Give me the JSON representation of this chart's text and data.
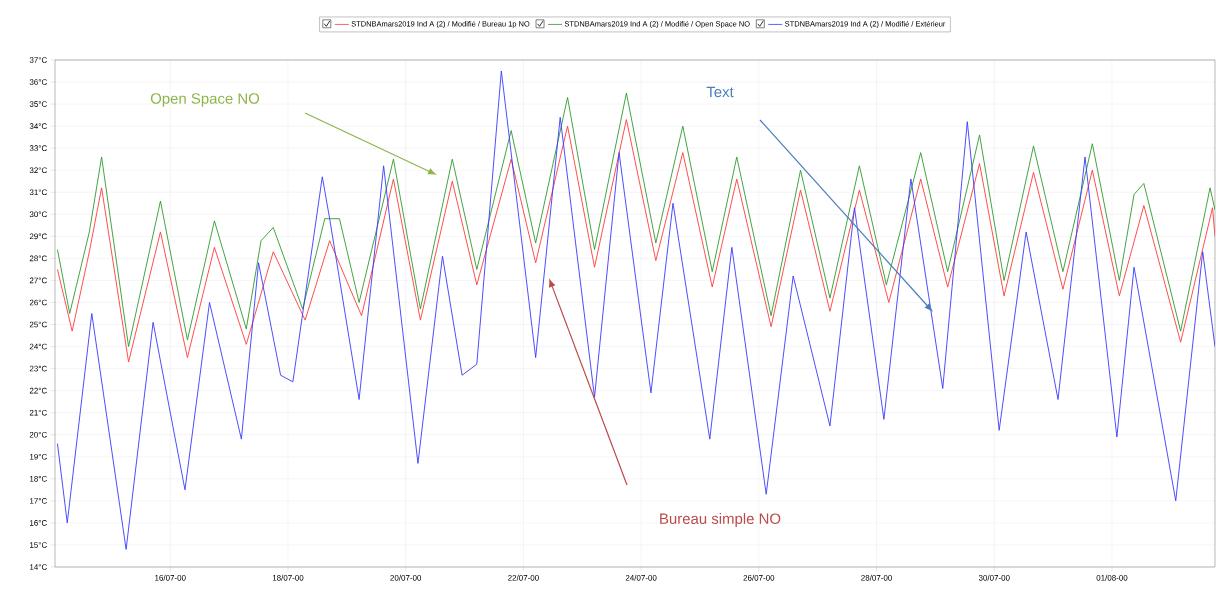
{
  "chart_data": {
    "type": "line",
    "xlim": [
      "2000-07-14T01:00",
      "2000-08-02T18:00"
    ],
    "xticks": [
      {
        "value": "2000-07-16",
        "label": "16/07-00"
      },
      {
        "value": "2000-07-18",
        "label": "18/07-00"
      },
      {
        "value": "2000-07-20",
        "label": "20/07-00"
      },
      {
        "value": "2000-07-22",
        "label": "22/07-00"
      },
      {
        "value": "2000-07-24",
        "label": "24/07-00"
      },
      {
        "value": "2000-07-26",
        "label": "26/07-00"
      },
      {
        "value": "2000-07-28",
        "label": "28/07-00"
      },
      {
        "value": "2000-07-30",
        "label": "30/07-00"
      },
      {
        "value": "2000-08-01",
        "label": "01/08-00"
      }
    ],
    "ylim": [
      14,
      37
    ],
    "yticks": [
      {
        "value": 14,
        "label": "14°C"
      },
      {
        "value": 15,
        "label": "15°C"
      },
      {
        "value": 16,
        "label": "16°C"
      },
      {
        "value": 17,
        "label": "17°C"
      },
      {
        "value": 18,
        "label": "18°C"
      },
      {
        "value": 19,
        "label": "19°C"
      },
      {
        "value": 20,
        "label": "20°C"
      },
      {
        "value": 21,
        "label": "21°C"
      },
      {
        "value": 22,
        "label": "22°C"
      },
      {
        "value": 23,
        "label": "23°C"
      },
      {
        "value": 24,
        "label": "24°C"
      },
      {
        "value": 25,
        "label": "25°C"
      },
      {
        "value": 26,
        "label": "26°C"
      },
      {
        "value": 27,
        "label": "27°C"
      },
      {
        "value": 28,
        "label": "28°C"
      },
      {
        "value": 29,
        "label": "29°C"
      },
      {
        "value": 30,
        "label": "30°C"
      },
      {
        "value": 31,
        "label": "31°C"
      },
      {
        "value": 32,
        "label": "32°C"
      },
      {
        "value": 33,
        "label": "33°C"
      },
      {
        "value": 34,
        "label": "34°C"
      },
      {
        "value": 35,
        "label": "35°C"
      },
      {
        "value": 36,
        "label": "36°C"
      },
      {
        "value": 37,
        "label": "37°C"
      }
    ],
    "grid": true,
    "legend": "top",
    "marker": "none",
    "line_style": "solid",
    "series": [
      {
        "name": "STDNBAmars2019 Ind A (2) / Modifié / Bureau 1p NO",
        "color": "#ff3b3b",
        "x": [
          "2000-07-14T02:00",
          "2000-07-14T08:00",
          "2000-07-14T15:00",
          "2000-07-14T20:00",
          "2000-07-15T07:00",
          "2000-07-15T20:00",
          "2000-07-16T07:00",
          "2000-07-16T18:00",
          "2000-07-17T07:00",
          "2000-07-17T18:00",
          "2000-07-18T07:00",
          "2000-07-18T17:00",
          "2000-07-19T06:00",
          "2000-07-19T19:00",
          "2000-07-20T06:00",
          "2000-07-20T19:00",
          "2000-07-21T05:00",
          "2000-07-21T19:00",
          "2000-07-22T05:00",
          "2000-07-22T18:00",
          "2000-07-23T05:00",
          "2000-07-23T18:00",
          "2000-07-24T06:00",
          "2000-07-24T17:00",
          "2000-07-25T05:00",
          "2000-07-25T15:00",
          "2000-07-26T05:00",
          "2000-07-26T17:00",
          "2000-07-27T05:00",
          "2000-07-27T17:00",
          "2000-07-28T05:00",
          "2000-07-28T18:00",
          "2000-07-29T05:00",
          "2000-07-29T18:00",
          "2000-07-30T04:00",
          "2000-07-30T16:00",
          "2000-07-31T04:00",
          "2000-07-31T16:00",
          "2000-08-01T03:00",
          "2000-08-01T13:00",
          "2000-08-02T04:00",
          "2000-08-02T17:00",
          "2000-08-02T18:00"
        ],
        "values": [
          27.5,
          24.7,
          28.3,
          31.2,
          23.3,
          29.2,
          23.5,
          28.5,
          24.1,
          28.3,
          25.2,
          28.8,
          25.4,
          31.6,
          25.2,
          31.5,
          26.8,
          32.5,
          27.8,
          34.0,
          27.6,
          34.3,
          27.9,
          32.8,
          26.7,
          31.6,
          24.9,
          31.1,
          25.6,
          31.1,
          26.0,
          31.6,
          26.7,
          32.3,
          26.3,
          31.9,
          26.6,
          32.0,
          26.3,
          30.4,
          24.2,
          30.3,
          29.0
        ]
      },
      {
        "name": "STDNBAmars2019 Ind A (2) / Modifié / Open Space NO",
        "color": "#2e9b2e",
        "x": [
          "2000-07-14T02:00",
          "2000-07-14T07:00",
          "2000-07-14T15:00",
          "2000-07-14T20:00",
          "2000-07-15T07:00",
          "2000-07-15T20:00",
          "2000-07-16T07:00",
          "2000-07-16T18:00",
          "2000-07-17T07:00",
          "2000-07-17T13:00",
          "2000-07-17T18:00",
          "2000-07-18T06:00",
          "2000-07-18T15:00",
          "2000-07-18T21:00",
          "2000-07-19T05:00",
          "2000-07-19T19:00",
          "2000-07-20T06:00",
          "2000-07-20T19:00",
          "2000-07-21T05:00",
          "2000-07-21T19:00",
          "2000-07-22T05:00",
          "2000-07-22T18:00",
          "2000-07-23T05:00",
          "2000-07-23T18:00",
          "2000-07-24T06:00",
          "2000-07-24T17:00",
          "2000-07-25T05:00",
          "2000-07-25T15:00",
          "2000-07-26T05:00",
          "2000-07-26T17:00",
          "2000-07-27T05:00",
          "2000-07-27T17:00",
          "2000-07-28T04:00",
          "2000-07-28T18:00",
          "2000-07-29T05:00",
          "2000-07-29T18:00",
          "2000-07-30T04:00",
          "2000-07-30T16:00",
          "2000-07-31T04:00",
          "2000-07-31T16:00",
          "2000-08-01T03:00",
          "2000-08-01T09:00",
          "2000-08-01T13:00",
          "2000-08-02T04:00",
          "2000-08-02T16:00",
          "2000-08-02T18:00"
        ],
        "values": [
          28.4,
          25.5,
          29.2,
          32.6,
          24.0,
          30.6,
          24.3,
          29.7,
          24.8,
          28.8,
          29.4,
          25.7,
          29.8,
          29.8,
          26.0,
          32.5,
          25.7,
          32.5,
          27.5,
          33.8,
          28.7,
          35.3,
          28.4,
          35.5,
          28.7,
          34.0,
          27.4,
          32.6,
          25.4,
          32.0,
          26.2,
          32.2,
          26.8,
          32.8,
          27.4,
          33.6,
          27.0,
          33.1,
          27.4,
          33.2,
          27.0,
          30.9,
          31.4,
          24.7,
          31.2,
          30.2
        ]
      },
      {
        "name": "STDNBAmars2019 Ind A (2) / Modifié / Extérieur",
        "color": "#3a3aff",
        "x": [
          "2000-07-14T02:00",
          "2000-07-14T06:00",
          "2000-07-14T16:00",
          "2000-07-15T06:00",
          "2000-07-15T17:00",
          "2000-07-16T06:00",
          "2000-07-16T16:00",
          "2000-07-17T05:00",
          "2000-07-17T12:00",
          "2000-07-17T21:00",
          "2000-07-18T02:00",
          "2000-07-18T14:00",
          "2000-07-18T17:00",
          "2000-07-19T05:00",
          "2000-07-19T15:00",
          "2000-07-20T05:00",
          "2000-07-20T15:00",
          "2000-07-20T23:00",
          "2000-07-21T05:00",
          "2000-07-21T15:00",
          "2000-07-22T05:00",
          "2000-07-22T15:00",
          "2000-07-23T05:00",
          "2000-07-23T15:00",
          "2000-07-24T04:00",
          "2000-07-24T13:00",
          "2000-07-25T04:00",
          "2000-07-25T13:00",
          "2000-07-26T03:00",
          "2000-07-26T14:00",
          "2000-07-27T05:00",
          "2000-07-27T15:00",
          "2000-07-28T03:00",
          "2000-07-28T14:00",
          "2000-07-29T03:00",
          "2000-07-29T13:00",
          "2000-07-30T02:00",
          "2000-07-30T13:00",
          "2000-07-31T02:00",
          "2000-07-31T13:00",
          "2000-08-01T02:00",
          "2000-08-01T09:00",
          "2000-08-02T02:00",
          "2000-08-02T13:00",
          "2000-08-02T18:00"
        ],
        "values": [
          19.6,
          16.0,
          25.5,
          14.8,
          25.1,
          17.5,
          26.0,
          19.8,
          27.8,
          22.7,
          22.4,
          31.7,
          29.8,
          21.6,
          32.2,
          18.7,
          28.1,
          22.7,
          23.2,
          36.5,
          23.5,
          34.4,
          21.7,
          32.8,
          21.9,
          30.5,
          19.8,
          28.5,
          17.3,
          27.2,
          20.4,
          30.3,
          20.7,
          31.6,
          22.1,
          34.2,
          20.2,
          29.2,
          21.6,
          32.6,
          19.9,
          27.6,
          17.0,
          28.3,
          24.0
        ]
      }
    ],
    "annotations": [
      "Open Space NO",
      "Text",
      "Bureau simple NO"
    ]
  }
}
